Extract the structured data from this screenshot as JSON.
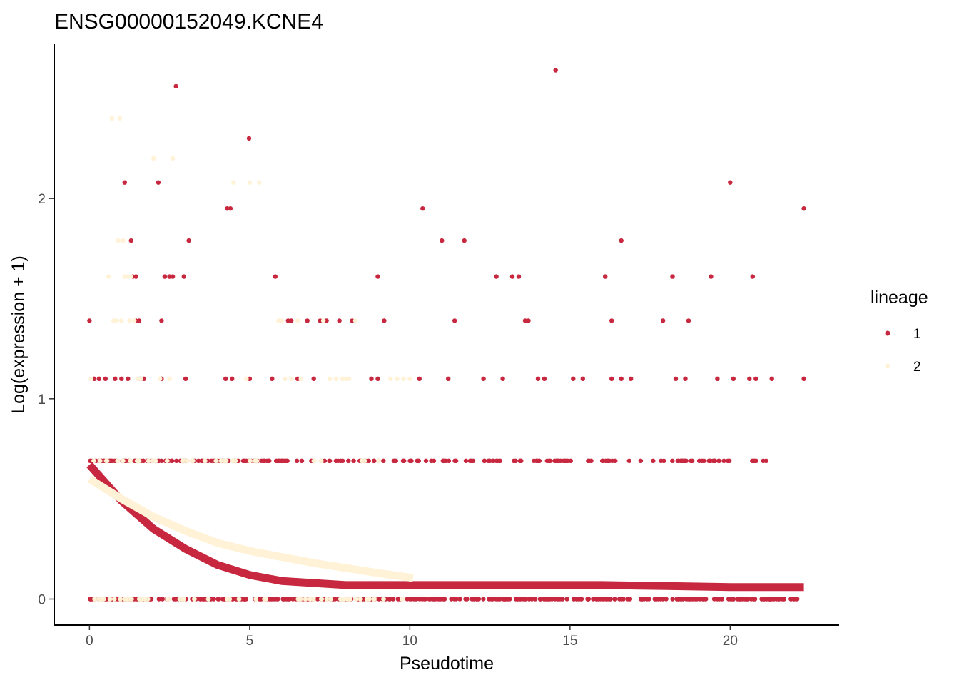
{
  "chart_data": {
    "type": "scatter",
    "title": "ENSG00000152049.KCNE4",
    "xlabel": "Pseudotime",
    "ylabel": "Log(expression + 1)",
    "xlim": [
      -1.1,
      23.4
    ],
    "ylim": [
      -0.13,
      2.77
    ],
    "x_ticks": [
      0,
      5,
      10,
      15,
      20
    ],
    "x_tick_labels": [
      "0",
      "5",
      "10",
      "15",
      "20"
    ],
    "y_ticks": [
      0,
      1,
      2
    ],
    "y_tick_labels": [
      "0",
      "1",
      "2"
    ],
    "grid": false,
    "legend": {
      "title": "lineage",
      "position": "right",
      "entries": [
        {
          "label": "1",
          "color": "#C8283F"
        },
        {
          "label": "2",
          "color": "#FFF2D6"
        }
      ]
    },
    "series": [
      {
        "name": "1",
        "color": "#C8283F",
        "points": [
          [
            0.0,
            1.39
          ],
          [
            0.05,
            0.69
          ],
          [
            0.1,
            0.0
          ],
          [
            0.15,
            1.1
          ],
          [
            0.3,
            1.1
          ],
          [
            0.5,
            1.1
          ],
          [
            0.8,
            1.1
          ],
          [
            1.0,
            1.1
          ],
          [
            1.05,
            0.69
          ],
          [
            1.1,
            2.08
          ],
          [
            1.2,
            1.1
          ],
          [
            1.3,
            1.79
          ],
          [
            1.35,
            1.61
          ],
          [
            1.45,
            1.61
          ],
          [
            1.45,
            1.39
          ],
          [
            1.55,
            1.39
          ],
          [
            1.6,
            1.1
          ],
          [
            1.7,
            1.1
          ],
          [
            1.8,
            0.69
          ],
          [
            2.15,
            2.08
          ],
          [
            2.25,
            1.39
          ],
          [
            2.25,
            1.1
          ],
          [
            2.35,
            1.61
          ],
          [
            2.5,
            1.61
          ],
          [
            2.6,
            1.61
          ],
          [
            2.7,
            2.56
          ],
          [
            2.95,
            1.61
          ],
          [
            3.0,
            1.1
          ],
          [
            3.1,
            1.79
          ],
          [
            3.5,
            0.69
          ],
          [
            4.3,
            1.95
          ],
          [
            4.4,
            1.95
          ],
          [
            4.25,
            1.1
          ],
          [
            4.45,
            1.1
          ],
          [
            4.8,
            0.69
          ],
          [
            4.98,
            2.3
          ],
          [
            5.0,
            1.1
          ],
          [
            5.7,
            1.1
          ],
          [
            5.8,
            1.61
          ],
          [
            6.0,
            0.69
          ],
          [
            6.2,
            1.39
          ],
          [
            6.3,
            1.39
          ],
          [
            6.5,
            1.1
          ],
          [
            6.8,
            1.39
          ],
          [
            7.0,
            1.1
          ],
          [
            7.2,
            1.39
          ],
          [
            7.4,
            1.39
          ],
          [
            7.5,
            0.69
          ],
          [
            7.8,
            1.39
          ],
          [
            8.2,
            1.39
          ],
          [
            8.8,
            1.1
          ],
          [
            9.0,
            1.1
          ],
          [
            9.0,
            1.61
          ],
          [
            9.2,
            1.39
          ],
          [
            9.5,
            0.69
          ],
          [
            10.3,
            1.1
          ],
          [
            10.4,
            1.95
          ],
          [
            11.0,
            1.79
          ],
          [
            11.2,
            1.1
          ],
          [
            11.4,
            1.39
          ],
          [
            11.7,
            1.79
          ],
          [
            12.3,
            1.1
          ],
          [
            12.7,
            1.61
          ],
          [
            12.9,
            1.1
          ],
          [
            13.2,
            1.61
          ],
          [
            13.4,
            1.61
          ],
          [
            13.6,
            1.39
          ],
          [
            13.7,
            1.39
          ],
          [
            14.0,
            1.1
          ],
          [
            14.2,
            1.1
          ],
          [
            14.55,
            2.64
          ],
          [
            15.1,
            1.1
          ],
          [
            15.4,
            1.1
          ],
          [
            16.1,
            1.61
          ],
          [
            16.3,
            1.39
          ],
          [
            16.3,
            1.1
          ],
          [
            16.6,
            1.79
          ],
          [
            16.6,
            1.1
          ],
          [
            16.9,
            1.1
          ],
          [
            17.9,
            1.39
          ],
          [
            18.2,
            1.61
          ],
          [
            18.3,
            1.1
          ],
          [
            18.6,
            1.1
          ],
          [
            18.7,
            1.39
          ],
          [
            19.4,
            1.61
          ],
          [
            19.6,
            1.1
          ],
          [
            20.0,
            2.08
          ],
          [
            20.1,
            1.1
          ],
          [
            20.6,
            1.1
          ],
          [
            20.7,
            1.61
          ],
          [
            20.8,
            1.1
          ],
          [
            21.3,
            1.1
          ],
          [
            22.3,
            1.95
          ],
          [
            22.3,
            1.1
          ]
        ],
        "bands": [
          {
            "y": 0.69,
            "x_range": [
              0.0,
              21.2
            ],
            "count": 220
          },
          {
            "y": 0.0,
            "x_range": [
              0.0,
              22.3
            ],
            "count": 420
          }
        ],
        "smooth": {
          "x": [
            0,
            1,
            2,
            3,
            4,
            5,
            6,
            8,
            10,
            12,
            14,
            16,
            18,
            20,
            22.3
          ],
          "y": [
            0.67,
            0.49,
            0.35,
            0.25,
            0.17,
            0.12,
            0.09,
            0.07,
            0.07,
            0.07,
            0.07,
            0.07,
            0.065,
            0.06,
            0.06
          ]
        }
      },
      {
        "name": "2",
        "color": "#FFF2D6",
        "points": [
          [
            0.05,
            1.1
          ],
          [
            0.6,
            1.61
          ],
          [
            0.7,
            2.4
          ],
          [
            0.75,
            1.39
          ],
          [
            0.85,
            1.39
          ],
          [
            0.9,
            1.79
          ],
          [
            0.95,
            2.4
          ],
          [
            1.0,
            1.39
          ],
          [
            1.05,
            1.79
          ],
          [
            1.1,
            1.61
          ],
          [
            1.2,
            1.61
          ],
          [
            1.25,
            1.39
          ],
          [
            1.3,
            1.61
          ],
          [
            1.4,
            1.39
          ],
          [
            1.5,
            1.1
          ],
          [
            1.6,
            1.1
          ],
          [
            2.0,
            2.2
          ],
          [
            2.2,
            1.1
          ],
          [
            2.6,
            2.2
          ],
          [
            2.5,
            1.1
          ],
          [
            4.5,
            2.08
          ],
          [
            4.9,
            1.1
          ],
          [
            5.0,
            2.08
          ],
          [
            5.3,
            2.08
          ],
          [
            5.9,
            1.39
          ],
          [
            6.0,
            1.39
          ],
          [
            6.1,
            1.1
          ],
          [
            6.3,
            1.1
          ],
          [
            6.5,
            1.39
          ],
          [
            6.6,
            1.1
          ],
          [
            7.3,
            1.39
          ],
          [
            7.5,
            1.1
          ],
          [
            7.7,
            1.1
          ],
          [
            7.9,
            1.1
          ],
          [
            8.0,
            1.1
          ],
          [
            8.1,
            1.1
          ],
          [
            8.3,
            1.39
          ],
          [
            9.4,
            1.1
          ],
          [
            9.6,
            1.1
          ],
          [
            9.8,
            1.1
          ],
          [
            10.0,
            1.1
          ]
        ],
        "bands": [
          {
            "y": 0.69,
            "x_range": [
              0.1,
              9.5
            ],
            "count": 40
          },
          {
            "y": 0.0,
            "x_range": [
              0.1,
              10.1
            ],
            "count": 60
          }
        ],
        "smooth": {
          "x": [
            0,
            1,
            2,
            3,
            4,
            5,
            6,
            7,
            8,
            9,
            10.1
          ],
          "y": [
            0.6,
            0.5,
            0.41,
            0.34,
            0.28,
            0.24,
            0.21,
            0.18,
            0.155,
            0.13,
            0.105
          ]
        }
      }
    ]
  }
}
